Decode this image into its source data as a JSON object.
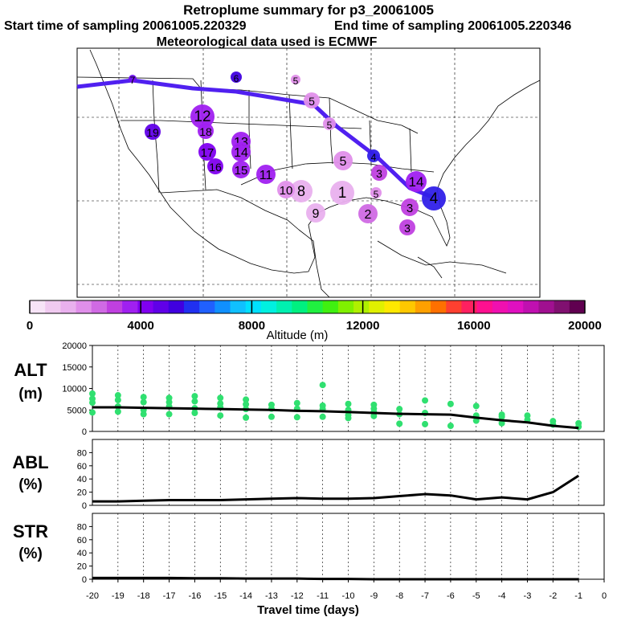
{
  "header": {
    "title": "Retroplume summary for p3_20061005",
    "start": "Start time of sampling 20061005.220329",
    "end": "End time of sampling 20061005.220346",
    "met": "Meteorological data used is ECMWF"
  },
  "colorbar": {
    "label": "Altitude (m)",
    "ticks": [
      "0",
      "4000",
      "8000",
      "12000",
      "16000",
      "20000"
    ],
    "range": [
      0,
      20000
    ],
    "colors": [
      "#f7e4f7",
      "#f0caf0",
      "#e9b0ee",
      "#e08fea",
      "#d06ae4",
      "#c040e0",
      "#a020f0",
      "#8000f0",
      "#6000e8",
      "#4000e0",
      "#2030f0",
      "#2060ff",
      "#1090ff",
      "#10c0ff",
      "#00e0ff",
      "#00f0e0",
      "#00f0b0",
      "#00f080",
      "#20f040",
      "#40f010",
      "#80f000",
      "#b0f000",
      "#e0f000",
      "#ffe800",
      "#ffc800",
      "#ffa000",
      "#ff7000",
      "#ff4030",
      "#ff2060",
      "#ff1090",
      "#f010b0",
      "#e010c0",
      "#c010b0",
      "#a01090",
      "#801070",
      "#600050"
    ]
  },
  "map": {
    "clusters": [
      {
        "label": "1",
        "color": "#e9b0ee"
      },
      {
        "label": "2",
        "color": "#d06ae4"
      },
      {
        "label": "3",
        "color": "#c040e0"
      },
      {
        "label": "4",
        "color": "#3020e8"
      },
      {
        "label": "5",
        "color": "#e08fea"
      },
      {
        "label": "6",
        "color": "#4000e0"
      },
      {
        "label": "7",
        "color": "#7010f0"
      },
      {
        "label": "8",
        "color": "#e9b0ee"
      },
      {
        "label": "9",
        "color": "#e9b0ee"
      },
      {
        "label": "10",
        "color": "#e08fea"
      },
      {
        "label": "11",
        "color": "#a020f0"
      },
      {
        "label": "12",
        "color": "#a020f0"
      },
      {
        "label": "13",
        "color": "#a020f0"
      },
      {
        "label": "14",
        "color": "#a020f0"
      },
      {
        "label": "15",
        "color": "#a020f0"
      },
      {
        "label": "16",
        "color": "#8000f0"
      },
      {
        "label": "17",
        "color": "#8000f0"
      },
      {
        "label": "18",
        "color": "#a020f0"
      },
      {
        "label": "19",
        "color": "#6000e8"
      }
    ],
    "path_color": "#5020f0"
  },
  "chart_data": [
    {
      "type": "line",
      "name": "ALT",
      "ylabel": "ALT (m)",
      "ylim": [
        0,
        20000
      ],
      "yticks": [
        0,
        5000,
        10000,
        15000,
        20000
      ],
      "x": [
        -20,
        -19,
        -18,
        -17,
        -16,
        -15,
        -14,
        -13,
        -12,
        -11,
        -10,
        -9,
        -8,
        -7,
        -6,
        -5,
        -4,
        -3,
        -2,
        -1
      ],
      "values": [
        5600,
        5600,
        5500,
        5400,
        5300,
        5200,
        5100,
        5000,
        4800,
        4700,
        4500,
        4300,
        4100,
        4000,
        3900,
        3200,
        2600,
        2100,
        1300,
        800
      ],
      "scatter_color": "#30e070",
      "scatter": [
        [
          -20,
          8800
        ],
        [
          -20,
          7600
        ],
        [
          -20,
          6700
        ],
        [
          -20,
          4400
        ],
        [
          -19,
          8400
        ],
        [
          -19,
          7300
        ],
        [
          -19,
          5800
        ],
        [
          -19,
          4600
        ],
        [
          -18,
          8000
        ],
        [
          -18,
          6800
        ],
        [
          -18,
          5000
        ],
        [
          -18,
          4000
        ],
        [
          -17,
          7800
        ],
        [
          -17,
          6800
        ],
        [
          -17,
          5800
        ],
        [
          -17,
          4000
        ],
        [
          -16,
          8200
        ],
        [
          -16,
          7000
        ],
        [
          -16,
          5400
        ],
        [
          -16,
          4300
        ],
        [
          -15,
          7800
        ],
        [
          -15,
          6500
        ],
        [
          -15,
          5600
        ],
        [
          -15,
          3700
        ],
        [
          -14,
          7400
        ],
        [
          -14,
          6300
        ],
        [
          -14,
          5200
        ],
        [
          -14,
          3200
        ],
        [
          -13,
          6200
        ],
        [
          -13,
          5300
        ],
        [
          -13,
          3400
        ],
        [
          -12,
          6600
        ],
        [
          -12,
          5300
        ],
        [
          -12,
          3300
        ],
        [
          -11,
          10800
        ],
        [
          -11,
          6000
        ],
        [
          -11,
          5200
        ],
        [
          -11,
          3400
        ],
        [
          -10,
          6400
        ],
        [
          -10,
          5000
        ],
        [
          -10,
          3800
        ],
        [
          -10,
          3100
        ],
        [
          -9,
          6200
        ],
        [
          -9,
          5300
        ],
        [
          -9,
          4500
        ],
        [
          -9,
          3600
        ],
        [
          -8,
          5200
        ],
        [
          -8,
          4000
        ],
        [
          -8,
          1800
        ],
        [
          -7,
          7200
        ],
        [
          -7,
          4300
        ],
        [
          -7,
          1700
        ],
        [
          -6,
          6400
        ],
        [
          -6,
          1300
        ],
        [
          -5,
          5900
        ],
        [
          -5,
          3700
        ],
        [
          -5,
          2500
        ],
        [
          -4,
          3900
        ],
        [
          -4,
          3400
        ],
        [
          -4,
          1900
        ],
        [
          -3,
          3700
        ],
        [
          -3,
          2700
        ],
        [
          -2,
          2400
        ],
        [
          -2,
          1600
        ],
        [
          -1,
          1900
        ],
        [
          -1,
          1100
        ]
      ]
    },
    {
      "type": "line",
      "name": "ABL",
      "ylabel": "ABL (%)",
      "ylim": [
        0,
        100
      ],
      "yticks": [
        0,
        20,
        40,
        60,
        80
      ],
      "x": [
        -20,
        -19,
        -18,
        -17,
        -16,
        -15,
        -14,
        -13,
        -12,
        -11,
        -10,
        -9,
        -8,
        -7,
        -6,
        -5,
        -4,
        -3,
        -2,
        -1
      ],
      "values": [
        6,
        6,
        7,
        8,
        8,
        8,
        9,
        10,
        11,
        10,
        10,
        11,
        14,
        17,
        15,
        9,
        12,
        9,
        20,
        45
      ]
    },
    {
      "type": "line",
      "name": "STR",
      "ylabel": "STR (%)",
      "ylim": [
        0,
        100
      ],
      "yticks": [
        0,
        20,
        40,
        60,
        80
      ],
      "x": [
        -20,
        -19,
        -18,
        -17,
        -16,
        -15,
        -14,
        -13,
        -12,
        -11,
        -10,
        -9,
        -8,
        -7,
        -6,
        -5,
        -4,
        -3,
        -2,
        -1
      ],
      "values": [
        2,
        2,
        2,
        2,
        1.5,
        1.5,
        1,
        1,
        1,
        0.5,
        0.5,
        0,
        0,
        0,
        0,
        0,
        0,
        0,
        0,
        0
      ],
      "xlabel": "Travel time (days)",
      "xticks": [
        "-20",
        "-19",
        "-18",
        "-17",
        "-16",
        "-15",
        "-14",
        "-13",
        "-12",
        "-11",
        "-10",
        "-9",
        "-8",
        "-7",
        "-6",
        "-5",
        "-4",
        "-3",
        "-2",
        "-1",
        "0"
      ]
    }
  ]
}
